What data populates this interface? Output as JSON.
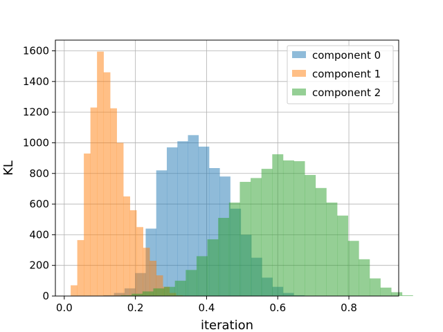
{
  "chart_data": {
    "type": "bar",
    "subtype": "histogram",
    "xlabel": "iteration",
    "ylabel": "KL",
    "xlim": [
      -0.025,
      0.94
    ],
    "ylim": [
      0,
      1670
    ],
    "xticks": [
      0.0,
      0.2,
      0.4,
      0.6,
      0.8
    ],
    "xtick_labels": [
      "0.0",
      "0.2",
      "0.4",
      "0.6",
      "0.8"
    ],
    "yticks": [
      0,
      200,
      400,
      600,
      800,
      1000,
      1200,
      1400,
      1600
    ],
    "ytick_labels": [
      "0",
      "200",
      "400",
      "600",
      "800",
      "1000",
      "1200",
      "1400",
      "1600"
    ],
    "grid": true,
    "legend_placement": "top-right",
    "series": [
      {
        "name": "component 0",
        "color": "#1f77b4",
        "alpha": 0.5,
        "bin_start": 0.11,
        "bin_width": 0.0297,
        "values": [
          5,
          20,
          50,
          150,
          440,
          820,
          970,
          1010,
          1050,
          975,
          835,
          780,
          570,
          400,
          250,
          120,
          60,
          20,
          5
        ]
      },
      {
        "name": "component 1",
        "color": "#ff7f0e",
        "alpha": 0.5,
        "bin_start": 0.018,
        "bin_width": 0.0185,
        "values": [
          70,
          365,
          930,
          1230,
          1595,
          1460,
          1225,
          1000,
          650,
          560,
          450,
          315,
          230,
          135,
          60,
          20,
          5
        ]
      },
      {
        "name": "component 2",
        "color": "#2ca02c",
        "alpha": 0.5,
        "bin_start": 0.159,
        "bin_width": 0.0304,
        "values": [
          5,
          15,
          30,
          50,
          60,
          100,
          170,
          260,
          370,
          510,
          610,
          745,
          770,
          830,
          925,
          885,
          880,
          790,
          705,
          610,
          525,
          360,
          240,
          115,
          55,
          25,
          5
        ]
      }
    ]
  }
}
